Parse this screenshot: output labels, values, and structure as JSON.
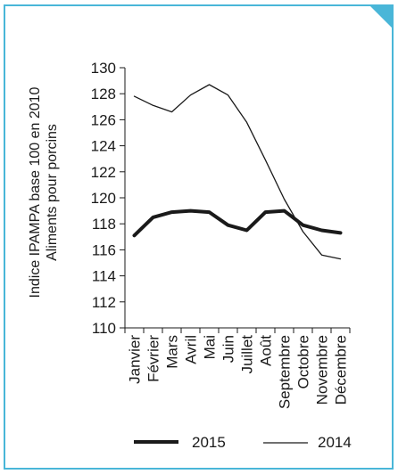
{
  "frame": {
    "border_color": "#49b6d8",
    "background": "#ffffff"
  },
  "chart_data": {
    "type": "line",
    "title": "",
    "xlabel": "",
    "ylabel_lines": [
      "Indice IPAMPA base 100 en 2010",
      "Aliments pour porcins"
    ],
    "categories": [
      "Janvier",
      "Février",
      "Mars",
      "Avril",
      "Mai",
      "Juin",
      "Juillet",
      "Août",
      "Septembre",
      "Octobre",
      "Novembre",
      "Décembre"
    ],
    "ylim": [
      110,
      130
    ],
    "yticks": [
      "110",
      "112",
      "114",
      "116",
      "118",
      "120",
      "122",
      "124",
      "126",
      "128",
      "130"
    ],
    "grid": false,
    "legend_position": "bottom",
    "series": [
      {
        "name": "2015",
        "color": "#1a1a1a",
        "style": "thick",
        "values": [
          117.1,
          118.5,
          118.9,
          119.0,
          118.9,
          117.9,
          117.5,
          118.9,
          119.0,
          117.9,
          117.5,
          117.3
        ]
      },
      {
        "name": "2014",
        "color": "#1a1a1a",
        "style": "thin",
        "values": [
          127.8,
          127.1,
          126.6,
          127.9,
          128.7,
          127.9,
          125.8,
          122.9,
          119.9,
          117.4,
          115.6,
          115.3
        ]
      }
    ]
  }
}
